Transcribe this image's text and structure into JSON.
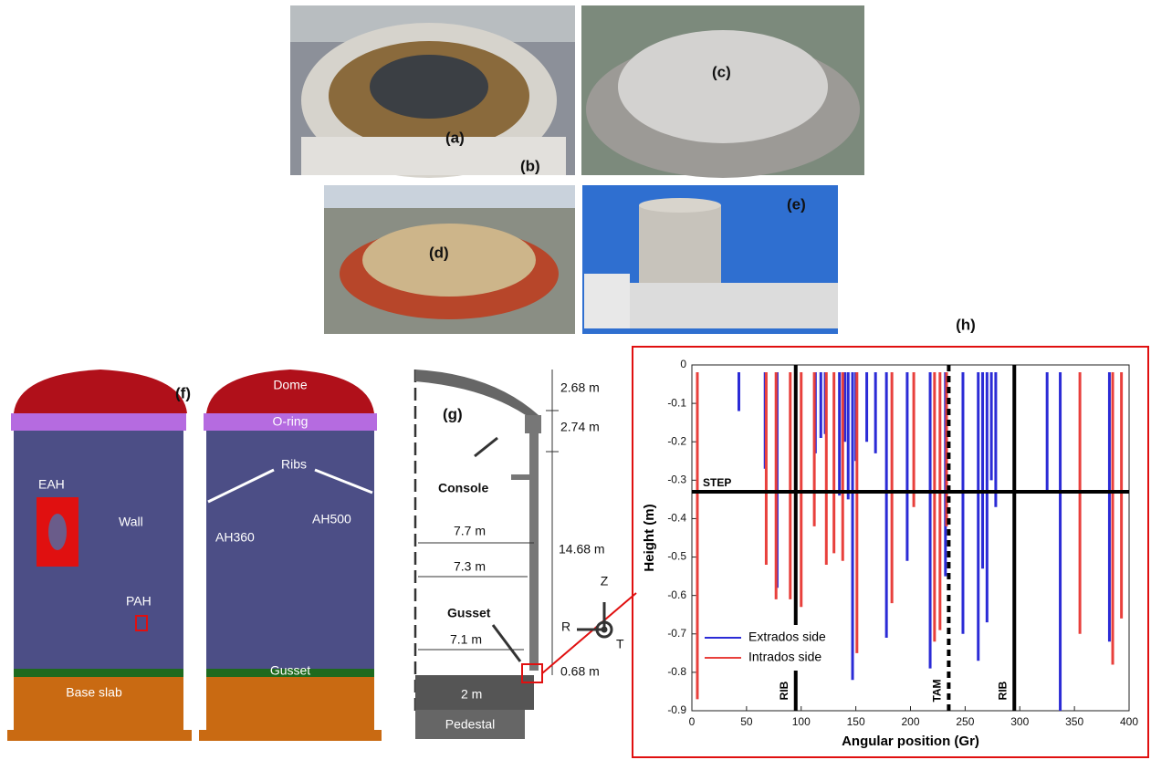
{
  "photos": {
    "labels": [
      "(a)",
      "(b)",
      "(c)",
      "(d)",
      "(e)"
    ]
  },
  "diagram_f": {
    "label": "(f)",
    "dome": "Dome",
    "o_ring": "O-ring",
    "ribs": "Ribs",
    "eah": "EAH",
    "wall": "Wall",
    "ah360": "AH360",
    "ah500": "AH500",
    "pah": "PAH",
    "gusset": "Gusset",
    "base_slab": "Base slab"
  },
  "diagram_g": {
    "label": "(g)",
    "dimensions": [
      "2.68 m",
      "2.74 m",
      "14.68 m",
      "7.7 m",
      "7.3 m",
      "7.1 m",
      "0.68 m",
      "2 m"
    ],
    "console": "Console",
    "gusset": "Gusset",
    "pedestal": "Pedestal",
    "axes": [
      "Z",
      "R",
      "T"
    ]
  },
  "chart_data": {
    "type": "segment",
    "title": "(h)",
    "x_label": "Angular position (Gr)",
    "y_label": "Height (m)",
    "xlim": [
      0,
      400
    ],
    "ylim": [
      -0.9,
      0
    ],
    "xticks": [
      0,
      50,
      100,
      150,
      200,
      250,
      300,
      350,
      400
    ],
    "yticks": [
      0,
      -0.1,
      -0.2,
      -0.3,
      -0.4,
      -0.5,
      -0.6,
      -0.7,
      -0.8,
      -0.9
    ],
    "legend": "lower left",
    "series": [
      {
        "name": "Extrados side",
        "color": "#2b2bd6",
        "x": [
          43,
          67,
          78,
          113,
          118,
          122,
          135,
          140,
          143,
          147,
          150,
          160,
          168,
          178,
          197,
          218,
          232,
          248,
          262,
          266,
          270,
          274,
          278,
          325,
          337,
          382
        ],
        "values": [
          -0.12,
          -0.27,
          -0.58,
          -0.23,
          -0.19,
          -0.18,
          -0.34,
          -0.2,
          -0.35,
          -0.82,
          -0.25,
          -0.2,
          -0.23,
          -0.71,
          -0.51,
          -0.79,
          -0.55,
          -0.7,
          -0.77,
          -0.53,
          -0.67,
          -0.3,
          -0.37,
          -0.33,
          -0.9,
          -0.72
        ]
      },
      {
        "name": "Intrados side",
        "color": "#e8403c",
        "x": [
          5,
          68,
          77,
          90,
          100,
          112,
          123,
          130,
          138,
          151,
          183,
          203,
          222,
          227,
          233,
          355,
          385,
          393
        ],
        "values": [
          -0.87,
          -0.52,
          -0.61,
          -0.61,
          -0.63,
          -0.42,
          -0.52,
          -0.49,
          -0.51,
          -0.75,
          -0.62,
          -0.37,
          -0.72,
          -0.69,
          -0.42,
          -0.7,
          -0.78,
          -0.66
        ]
      }
    ],
    "annotations": [
      {
        "label": "RIB",
        "x": 95
      },
      {
        "label": "TAM",
        "x": 235,
        "style": "dashed"
      },
      {
        "label": "RIB",
        "x": 295
      },
      {
        "label": "STEP",
        "y": -0.33
      }
    ]
  }
}
